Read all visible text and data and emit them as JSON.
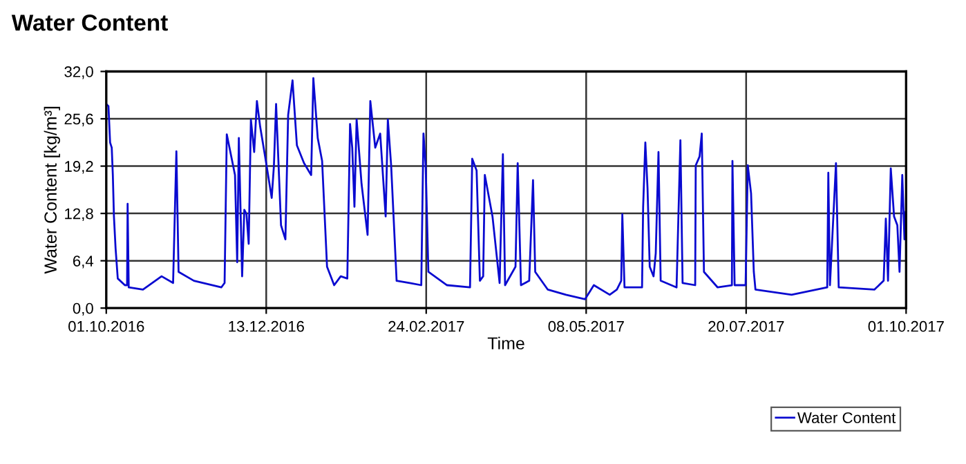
{
  "chart_data": {
    "type": "line",
    "title": "Water Content",
    "xlabel": "Time",
    "ylabel": "Water Content [kg/m³]",
    "x": [
      "2016-10-01T00:00",
      "2016-10-02T00:00",
      "2016-10-02T18:00",
      "2016-10-03T12:00",
      "2016-10-04T00:00",
      "2016-10-04T12:00",
      "2016-10-05T06:00",
      "2016-10-06T06:00",
      "2016-10-09T12:00",
      "2016-10-10T12:00",
      "2016-10-10T18:00",
      "2016-10-11T06:00",
      "2016-10-17T18:00",
      "2016-10-26T06:00",
      "2016-10-31T12:00",
      "2016-11-02T00:00",
      "2016-11-03T00:00",
      "2016-11-10T00:00",
      "2016-11-22T12:00",
      "2016-11-24T00:00",
      "2016-11-25T00:00",
      "2016-11-28T18:00",
      "2016-11-29T18:00",
      "2016-11-30T12:00",
      "2016-12-02T00:00",
      "2016-12-03T00:00",
      "2016-12-04T00:00",
      "2016-12-05T00:00",
      "2016-12-06T00:00",
      "2016-12-07T12:00",
      "2016-12-08T18:00",
      "2016-12-10T06:00",
      "2016-12-12T12:00",
      "2016-12-15T12:00",
      "2016-12-16T12:00",
      "2016-12-17T12:00",
      "2016-12-19T18:00",
      "2016-12-21T18:00",
      "2016-12-23T00:00",
      "2016-12-25T00:00",
      "2016-12-27T00:00",
      "2016-12-30T06:00",
      "2017-01-02T12:00",
      "2017-01-03T12:00",
      "2017-01-05T12:00",
      "2017-01-07T12:00",
      "2017-01-09T18:00",
      "2017-01-13T00:00",
      "2017-01-16T00:00",
      "2017-01-19T00:00",
      "2017-01-20T06:00",
      "2017-01-21T06:00",
      "2017-01-22T06:00",
      "2017-01-23T06:00",
      "2017-01-25T12:00",
      "2017-01-28T06:00",
      "2017-01-29T12:00",
      "2017-01-31T18:00",
      "2017-02-03T00:00",
      "2017-02-05T12:00",
      "2017-02-06T12:00",
      "2017-02-08T00:00",
      "2017-02-10T12:00",
      "2017-02-16T12:00",
      "2017-02-21T18:00",
      "2017-02-22T18:00",
      "2017-02-23T18:00",
      "2017-02-25T00:00",
      "2017-03-05T12:00",
      "2017-03-16T00:00",
      "2017-03-17T00:00",
      "2017-03-19T00:00",
      "2017-03-20T12:00",
      "2017-03-22T00:00",
      "2017-03-22T18:00",
      "2017-03-26T06:00",
      "2017-03-29T12:00",
      "2017-03-31T00:00",
      "2017-04-01T00:00",
      "2017-04-05T18:00",
      "2017-04-06T18:00",
      "2017-04-08T06:00",
      "2017-04-12T00:00",
      "2017-04-13T18:00",
      "2017-04-14T18:00",
      "2017-04-20T12:00",
      "2017-04-28T18:00",
      "2017-05-07T12:00",
      "2017-05-11T12:00",
      "2017-05-18T18:00",
      "2017-05-22T00:00",
      "2017-05-24T00:00",
      "2017-05-24T12:00",
      "2017-05-25T12:00",
      "2017-06-02T12:00",
      "2017-06-03T00:00",
      "2017-06-04T00:00",
      "2017-06-05T00:00",
      "2017-06-06T00:00",
      "2017-06-07T18:00",
      "2017-06-08T18:00",
      "2017-06-10T00:00",
      "2017-06-11T00:00",
      "2017-06-18T06:00",
      "2017-06-20T00:00",
      "2017-06-21T00:00",
      "2017-06-26T18:00",
      "2017-06-27T00:00",
      "2017-06-28T18:00",
      "2017-06-29T18:00",
      "2017-06-30T18:00",
      "2017-07-07T00:00",
      "2017-07-13T12:00",
      "2017-07-13T18:00",
      "2017-07-14T18:00",
      "2017-07-19T18:00",
      "2017-07-20T18:00",
      "2017-07-22T06:00",
      "2017-07-23T12:00",
      "2017-07-24T06:00",
      "2017-08-09T18:00",
      "2017-08-26T00:00",
      "2017-08-26T12:00",
      "2017-08-27T06:00",
      "2017-08-30T00:00",
      "2017-08-31T06:00",
      "2017-09-16T12:00",
      "2017-09-20T18:00",
      "2017-09-21T18:00",
      "2017-09-22T18:00",
      "2017-09-24T00:00",
      "2017-09-25T12:00",
      "2017-09-27T00:00",
      "2017-09-28T00:00",
      "2017-09-29T06:00",
      "2017-09-30T06:00",
      "2017-09-30T18:00"
    ],
    "series": [
      {
        "name": "Water Content",
        "color": "#0a0ad0",
        "values": [
          27.6,
          27.3,
          22.4,
          21.7,
          18.0,
          12.4,
          8.1,
          4.0,
          3.1,
          3.1,
          14.1,
          2.8,
          2.5,
          4.3,
          3.4,
          21.2,
          4.9,
          3.7,
          2.8,
          3.4,
          23.5,
          18.0,
          6.2,
          23.0,
          4.3,
          13.3,
          12.7,
          8.7,
          25.5,
          21.1,
          28.0,
          24.5,
          20.5,
          14.9,
          19.2,
          27.6,
          11.2,
          9.3,
          26.1,
          30.8,
          22.0,
          19.6,
          18.0,
          31.1,
          23.0,
          19.9,
          5.6,
          3.1,
          4.3,
          4.0,
          24.9,
          21.7,
          13.7,
          25.5,
          16.8,
          9.9,
          28.0,
          21.7,
          23.6,
          12.4,
          25.5,
          19.3,
          3.7,
          3.4,
          3.1,
          23.6,
          19.3,
          4.9,
          3.1,
          2.8,
          20.2,
          18.6,
          3.7,
          4.3,
          18.0,
          12.4,
          3.4,
          20.8,
          3.1,
          5.6,
          19.6,
          3.1,
          3.7,
          17.3,
          4.9,
          2.5,
          1.8,
          1.2,
          3.1,
          1.8,
          2.5,
          3.7,
          12.7,
          2.8,
          2.8,
          13.7,
          22.4,
          16.2,
          5.6,
          4.3,
          7.4,
          21.1,
          3.7,
          2.8,
          22.7,
          3.4,
          3.1,
          19.3,
          20.5,
          23.6,
          4.9,
          2.8,
          3.1,
          19.9,
          3.1,
          3.1,
          19.3,
          15.5,
          4.9,
          2.5,
          1.8,
          2.8,
          18.3,
          3.1,
          19.6,
          2.8,
          2.5,
          3.7,
          12.1,
          3.7,
          18.9,
          12.4,
          11.2,
          4.9,
          18.0,
          9.3,
          13.0
        ]
      }
    ],
    "xlim": [
      "2016-10-01",
      "2017-10-01"
    ],
    "xticks": [
      {
        "value": "2016-10-01",
        "label": "01.10.2016"
      },
      {
        "value": "2016-12-13",
        "label": "13.12.2016"
      },
      {
        "value": "2017-02-24",
        "label": "24.02.2017"
      },
      {
        "value": "2017-05-08",
        "label": "08.05.2017"
      },
      {
        "value": "2017-07-20",
        "label": "20.07.2017"
      },
      {
        "value": "2017-10-01",
        "label": "01.10.2017"
      }
    ],
    "ylim": [
      0,
      32
    ],
    "yticks": [
      {
        "value": 0,
        "label": "0,0"
      },
      {
        "value": 6.4,
        "label": "6,4"
      },
      {
        "value": 12.8,
        "label": "12,8"
      },
      {
        "value": 19.2,
        "label": "19,2"
      },
      {
        "value": 25.6,
        "label": "25,6"
      },
      {
        "value": 32,
        "label": "32,0"
      }
    ],
    "grid": true,
    "legend": "bottom right",
    "line_style": "solid",
    "marker": "none"
  }
}
